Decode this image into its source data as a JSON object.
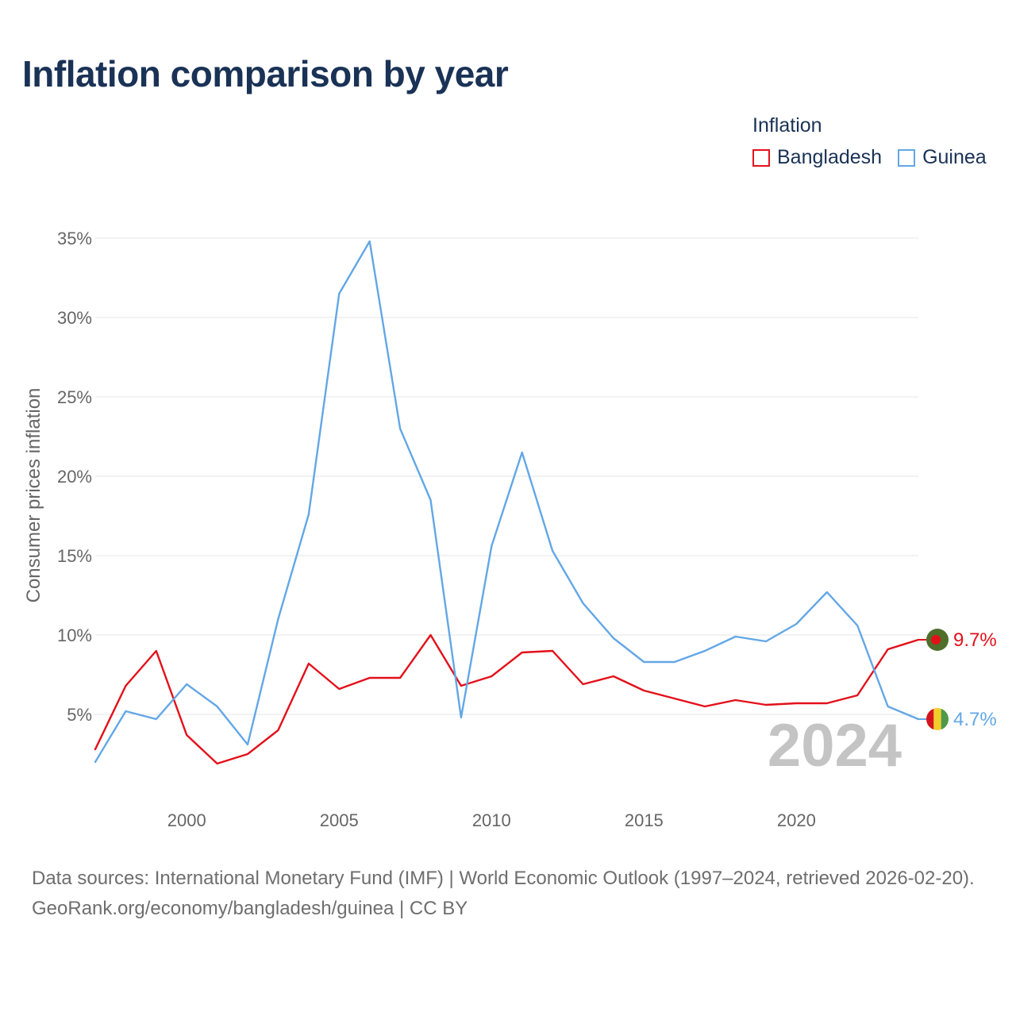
{
  "title": "Inflation comparison by year",
  "legend": {
    "title": "Inflation",
    "items": [
      {
        "name": "Bangladesh",
        "color": "#e3101a"
      },
      {
        "name": "Guinea",
        "color": "#63a7e6"
      }
    ]
  },
  "chart_data": {
    "type": "line",
    "title": "Inflation comparison by year",
    "xlabel": "",
    "ylabel": "Consumer prices inflation",
    "x": [
      1997,
      1998,
      1999,
      2000,
      2001,
      2002,
      2003,
      2004,
      2005,
      2006,
      2007,
      2008,
      2009,
      2010,
      2011,
      2012,
      2013,
      2014,
      2015,
      2016,
      2017,
      2018,
      2019,
      2020,
      2021,
      2022,
      2023,
      2024
    ],
    "xticks": [
      2000,
      2005,
      2010,
      2015,
      2020
    ],
    "xtick_labels": [
      "2000",
      "2005",
      "2010",
      "2015",
      "2020"
    ],
    "yticks": [
      5,
      10,
      15,
      20,
      25,
      30,
      35
    ],
    "ytick_labels": [
      "5%",
      "10%",
      "15%",
      "20%",
      "25%",
      "30%",
      "35%"
    ],
    "xlim": [
      1997,
      2024
    ],
    "ylim": [
      0,
      36.5
    ],
    "grid": true,
    "series": [
      {
        "name": "Bangladesh",
        "color": "#e3101a",
        "values": [
          2.8,
          6.8,
          9.0,
          3.7,
          1.9,
          2.5,
          4.0,
          8.2,
          6.6,
          7.3,
          7.3,
          10.0,
          6.8,
          7.4,
          8.9,
          9.0,
          6.9,
          7.4,
          6.5,
          6.0,
          5.5,
          5.9,
          5.6,
          5.7,
          5.7,
          6.2,
          9.1,
          9.7
        ],
        "end_label": "9.7%"
      },
      {
        "name": "Guinea",
        "color": "#63a7e6",
        "values": [
          2.0,
          5.2,
          4.7,
          6.9,
          5.5,
          3.1,
          11.0,
          17.6,
          31.5,
          34.8,
          23.0,
          18.5,
          4.8,
          15.6,
          21.5,
          15.3,
          12.0,
          9.8,
          8.3,
          8.3,
          9.0,
          9.9,
          9.6,
          10.7,
          12.7,
          10.6,
          5.5,
          4.7
        ],
        "end_label": "4.7%"
      }
    ],
    "year_watermark": "2024"
  },
  "source": {
    "line1": "Data sources: International Monetary Fund (IMF) | World Economic Outlook (1997–2024, retrieved 2026-02-20).",
    "line2": "GeoRank.org/economy/bangladesh/guinea | CC BY"
  }
}
